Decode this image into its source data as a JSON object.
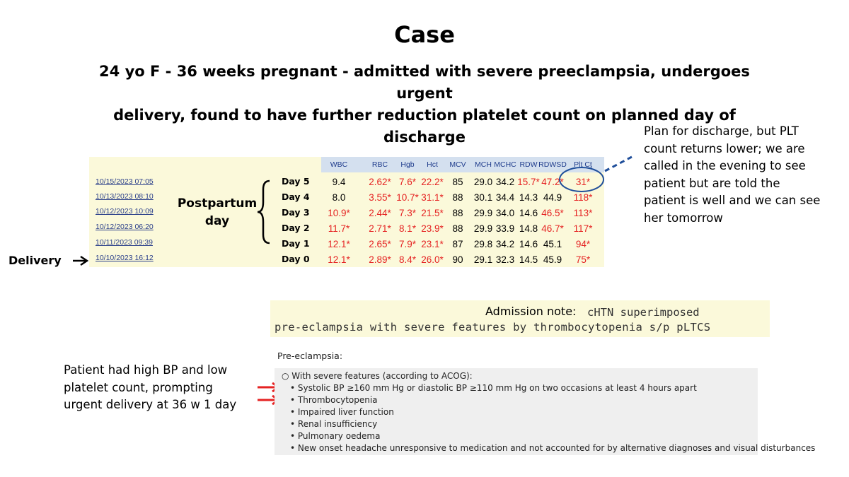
{
  "title": "Case",
  "subtitle_line1": "24 yo F - 36 weeks pregnant - admitted with severe preeclampsia, undergoes urgent",
  "subtitle_line2": "delivery, found to have further reduction platelet count on planned day of discharge",
  "discharge_note": [
    "Plan for discharge, but PLT",
    "count returns lower; we are",
    "called in the evening to see",
    "patient but are told the",
    "patient is well and we can see",
    "her tomorrow"
  ],
  "postpartum_label": [
    "Postpartum",
    "day"
  ],
  "delivery_label": "Delivery",
  "lab_table": {
    "columns": [
      "WBC",
      "RBC",
      "Hgb",
      "Hct",
      "MCV",
      "MCH",
      "MCHC",
      "RDW",
      "RDWSD",
      "Plt Ct"
    ],
    "rows": [
      {
        "date": "10/15/2023 07:05",
        "day": "Day 5",
        "values": [
          "9.4",
          "2.62*",
          "7.6*",
          "22.2*",
          "85",
          "29.0",
          "34.2",
          "15.7*",
          "47.2*",
          "31*"
        ]
      },
      {
        "date": "10/13/2023 08:10",
        "day": "Day 4",
        "values": [
          "8.0",
          "3.55*",
          "10.7*",
          "31.1*",
          "88",
          "30.1",
          "34.4",
          "14.3",
          "44.9",
          "118*"
        ]
      },
      {
        "date": "10/12/2023 10:09",
        "day": "Day 3",
        "values": [
          "10.9*",
          "2.44*",
          "7.3*",
          "21.5*",
          "88",
          "29.9",
          "34.0",
          "14.6",
          "46.5*",
          "113*"
        ]
      },
      {
        "date": "10/12/2023 06:20",
        "day": "Day 2",
        "values": [
          "11.7*",
          "2.71*",
          "8.1*",
          "23.9*",
          "88",
          "29.9",
          "33.9",
          "14.8",
          "46.7*",
          "117*"
        ]
      },
      {
        "date": "10/11/2023 09:39",
        "day": "Day 1",
        "values": [
          "12.1*",
          "2.65*",
          "7.9*",
          "23.1*",
          "87",
          "29.8",
          "34.2",
          "14.6",
          "45.1",
          "94*"
        ]
      },
      {
        "date": "10/10/2023 16:12",
        "day": "Day 0",
        "values": [
          "12.1*",
          "2.89*",
          "8.4*",
          "26.0*",
          "90",
          "29.1",
          "32.3",
          "14.5",
          "45.9",
          "75*"
        ]
      }
    ]
  },
  "admission_note": {
    "label": "Admission note:",
    "line1": "cHTN superimposed",
    "line2": "pre-eclampsia with severe features by thrombocytopenia s/p pLTCS"
  },
  "patient_note": [
    "Patient had high BP and low",
    "platelet count, prompting",
    "urgent delivery at 36 w 1 day"
  ],
  "criteria": {
    "heading": "Pre-eclampsia:",
    "subheading": "○ With severe features (according to ACOG):",
    "items": [
      "• Systolic BP ≥160 mm Hg or diastolic BP ≥110 mm Hg on two occasions at least 4 hours apart",
      "• Thrombocytopenia",
      "• Impaired liver function",
      "• Renal insufficiency",
      "• Pulmonary oedema",
      "• New onset headache unresponsive to medication and not accounted for by alternative diagnoses and visual disturbances"
    ]
  },
  "colors": {
    "abnormal": "#e52222",
    "arrow_red": "#e52222",
    "circle_blue": "#1f4e9a",
    "lab_bg": "#fbf9da",
    "header_bg": "#d4e0ef",
    "criteria_bg": "#efefef"
  }
}
